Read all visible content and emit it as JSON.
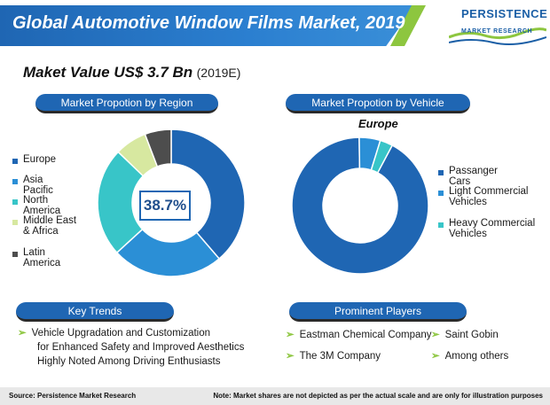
{
  "header": {
    "title": "Global Automotive Window Films Market, 2019",
    "logo_line1": "PERSISTENCE",
    "logo_line2": "MARKET RESEARCH"
  },
  "market_value": {
    "main": "Maket Value US$ 3.7 Bn",
    "year": "(2019E)"
  },
  "pills": {
    "region": "Market Propotion by Region",
    "vehicle": "Market Propotion by Vehicle",
    "trends": "Key Trends",
    "players": "Prominent Players"
  },
  "europe_label": "Europe",
  "center_label": "38.7%",
  "trends": [
    "Vehicle Upgradation and Customization",
    "for Enhanced Safety and Improved Aesthetics",
    "Highly Noted Among Driving Enthusiasts"
  ],
  "players": [
    "Eastman Chemical Company",
    "Saint Gobin",
    "The 3M Company",
    "Among others"
  ],
  "footer": {
    "source": "Source: Persistence Market Research",
    "note": "Note: Market shares are not depicted as per the actual scale and are only for illustration purposes"
  },
  "colors": {
    "europe": "#1f66b3",
    "asia_pacific": "#2b8fd6",
    "north_america": "#38c5c8",
    "middle_east_africa": "#d7e8a0",
    "latin_america": "#4d4d4d",
    "passenger_cars": "#1f66b3",
    "light_commercial": "#2b8fd6",
    "heavy_commercial": "#38c5c8",
    "accent_green": "#8dc63f"
  },
  "chart_data": [
    {
      "type": "pie",
      "title": "Market Propotion by Region",
      "categories": [
        "Europe",
        "Asia Pacific",
        "North America",
        "Middle East & Africa",
        "Latin America"
      ],
      "values": [
        38.7,
        24.5,
        24.0,
        7.0,
        5.8
      ],
      "center_label": "38.7%",
      "legend_placement": "left"
    },
    {
      "type": "pie",
      "title": "Market Propotion by Vehicle",
      "subtitle": "Europe",
      "categories": [
        "Passanger Cars",
        "Light Commercial Vehicles",
        "Heavy Commercial Vehicles"
      ],
      "values": [
        92,
        5,
        3
      ],
      "legend_placement": "right"
    }
  ]
}
